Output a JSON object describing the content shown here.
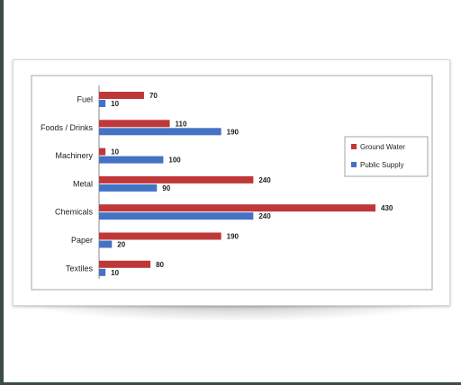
{
  "chart_data": {
    "type": "bar",
    "orientation": "horizontal",
    "categories": [
      "Fuel",
      "Foods / Drinks",
      "Machinery",
      "Metal",
      "Chemicals",
      "Paper",
      "Textiles"
    ],
    "series": [
      {
        "name": "Ground Water",
        "values": [
          70,
          110,
          10,
          240,
          430,
          190,
          80
        ],
        "color": "#c0373a"
      },
      {
        "name": "Public Supply",
        "values": [
          10,
          190,
          100,
          90,
          240,
          20,
          10
        ],
        "color": "#4472c4"
      }
    ],
    "xlim": [
      0,
      460
    ],
    "legend_position": "right",
    "grid": false
  }
}
